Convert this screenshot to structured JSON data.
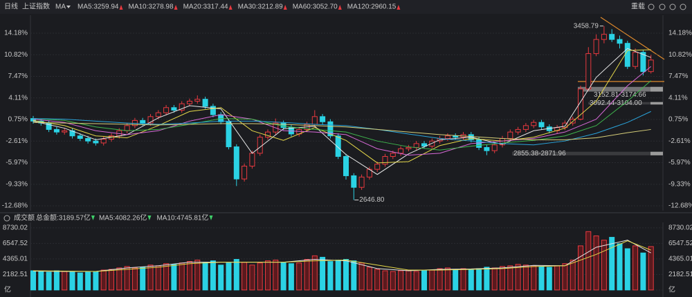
{
  "header": {
    "period": "日线",
    "symbol": "上证指数",
    "indicator": "MA",
    "reload": "重载"
  },
  "chart_data": [
    {
      "type": "candlestick",
      "up_color": "#e8393f",
      "down_color": "#2bd2e4",
      "ylim": [
        -13.43,
        16.65
      ],
      "yticks": [
        {
          "value": 14.18,
          "label": "14.18%"
        },
        {
          "value": 10.82,
          "label": "10.82%"
        },
        {
          "value": 7.47,
          "label": "7.47%"
        },
        {
          "value": 4.11,
          "label": "4.11%"
        },
        {
          "value": 0.75,
          "label": "0.75%"
        },
        {
          "value": -2.61,
          "label": "-2.61%"
        },
        {
          "value": -5.97,
          "label": "-5.97%"
        },
        {
          "value": -9.33,
          "label": "-9.33%"
        },
        {
          "value": -12.68,
          "label": "-12.68%"
        }
      ],
      "grid": true,
      "open": [
        0.9,
        0.5,
        0.2,
        -0.8,
        -1.2,
        -1.0,
        -1.8,
        -2.2,
        -2.6,
        -2.9,
        -2.3,
        -1.8,
        -1.0,
        -0.2,
        0.6,
        0.2,
        1.2,
        1.8,
        2.6,
        2.2,
        3.2,
        3.6,
        3.9,
        2.8,
        1.5,
        0.4,
        -3.5,
        -8.5,
        -6.5,
        -4.5,
        -2.0,
        -1.2,
        0.2,
        -0.5,
        -1.5,
        -0.8,
        0.0,
        1.2,
        0.4,
        -1.8,
        -5.0,
        -8.0,
        -9.8,
        -8.2,
        -7.0,
        -6.2,
        -5.0,
        -4.5,
        -3.8,
        -3.6,
        -3.0,
        -3.4,
        -2.6,
        -2.2,
        -1.8,
        -2.0,
        -1.6,
        -2.4,
        -3.6,
        -4.1,
        -3.2,
        -2.2,
        -1.2,
        -0.8,
        -0.2,
        0.3,
        -0.4,
        -1.0,
        -0.5,
        0.2,
        0.8,
        5.5,
        11.0,
        13.2,
        14.0,
        13.2,
        12.6,
        9.0,
        11.2,
        8.2
      ],
      "close": [
        0.5,
        0.2,
        -0.8,
        -1.2,
        -1.0,
        -1.8,
        -2.2,
        -2.6,
        -2.9,
        -2.3,
        -1.8,
        -1.0,
        -0.2,
        0.6,
        0.2,
        1.2,
        1.8,
        2.6,
        2.2,
        3.2,
        3.6,
        3.9,
        2.8,
        1.5,
        0.4,
        -3.5,
        -8.5,
        -6.5,
        -4.5,
        -2.0,
        -1.2,
        0.2,
        -0.5,
        -1.5,
        -0.8,
        0.0,
        1.2,
        0.4,
        -1.8,
        -5.0,
        -8.0,
        -9.8,
        -8.2,
        -7.0,
        -6.2,
        -5.0,
        -4.5,
        -3.8,
        -3.6,
        -3.0,
        -3.4,
        -2.6,
        -2.2,
        -1.8,
        -2.0,
        -1.6,
        -2.4,
        -3.6,
        -4.1,
        -3.2,
        -2.2,
        -1.2,
        -0.8,
        -0.2,
        0.3,
        -0.4,
        -1.0,
        -0.5,
        0.2,
        0.8,
        5.5,
        11.0,
        13.2,
        14.0,
        13.2,
        12.6,
        9.0,
        11.2,
        8.2,
        10.0
      ],
      "high": [
        1.3,
        0.9,
        0.6,
        -0.4,
        -0.6,
        -0.6,
        -1.4,
        -1.8,
        -2.2,
        -1.9,
        -1.4,
        -0.6,
        0.2,
        1.0,
        1.0,
        1.6,
        2.2,
        3.0,
        3.0,
        3.6,
        4.0,
        4.5,
        4.3,
        3.2,
        1.9,
        0.8,
        -3.1,
        -6.1,
        -4.1,
        -1.6,
        -0.8,
        0.9,
        0.6,
        -0.1,
        -0.4,
        0.4,
        2.2,
        1.6,
        0.8,
        -1.4,
        -4.6,
        -7.6,
        -7.8,
        -6.6,
        -5.8,
        -4.6,
        -4.1,
        -3.4,
        -3.2,
        -2.6,
        -2.6,
        -2.2,
        -1.8,
        -1.4,
        -1.4,
        -1.2,
        -1.2,
        -2.0,
        -3.2,
        -2.8,
        -1.8,
        -0.8,
        -0.4,
        0.2,
        0.7,
        0.7,
        0.0,
        -0.1,
        0.6,
        1.2,
        6.0,
        12.0,
        14.0,
        15.29,
        14.8,
        13.8,
        13.0,
        11.8,
        11.6,
        10.8
      ],
      "low": [
        0.1,
        -0.2,
        -1.2,
        -1.6,
        -1.6,
        -2.2,
        -2.6,
        -3.0,
        -3.3,
        -3.3,
        -2.7,
        -2.2,
        -1.4,
        -0.6,
        -0.2,
        -0.2,
        0.8,
        1.4,
        1.8,
        1.8,
        2.8,
        3.2,
        2.4,
        1.1,
        0.0,
        -3.9,
        -9.6,
        -8.9,
        -6.9,
        -4.9,
        -2.4,
        -1.6,
        -0.9,
        -1.9,
        -1.9,
        -1.2,
        -0.4,
        0.0,
        -2.2,
        -5.4,
        -8.6,
        -11.77,
        -10.2,
        -8.6,
        -7.4,
        -6.6,
        -5.4,
        -4.9,
        -4.2,
        -4.0,
        -3.8,
        -3.8,
        -3.0,
        -2.6,
        -2.4,
        -2.4,
        -2.8,
        -4.0,
        -4.8,
        -4.5,
        -3.6,
        -2.6,
        -1.6,
        -1.2,
        -0.6,
        -0.8,
        -1.4,
        -1.4,
        -0.9,
        -0.2,
        0.6,
        5.2,
        10.6,
        12.6,
        12.8,
        11.8,
        8.6,
        8.6,
        7.6,
        7.9
      ],
      "ma_x": [
        0,
        4,
        8,
        12,
        16,
        20,
        24,
        28,
        32,
        36,
        40,
        44,
        48,
        52,
        56,
        60,
        64,
        68,
        72,
        76,
        79
      ],
      "series": [
        {
          "name": "MA5:3259.94",
          "color": "#e8e8e8",
          "values": [
            0.5,
            -0.6,
            -2.4,
            -1.6,
            1.0,
            2.9,
            2.4,
            -4.5,
            -0.7,
            -0.3,
            -4.7,
            -7.8,
            -4.6,
            -2.4,
            -2.0,
            -3.1,
            -1.0,
            -0.3,
            7.3,
            11.8,
            10.4
          ]
        },
        {
          "name": "MA10:3278.98",
          "color": "#e6d94a",
          "values": [
            0.6,
            -0.2,
            -1.8,
            -2.1,
            -0.2,
            2.0,
            2.6,
            -1.0,
            -2.5,
            -0.5,
            -2.5,
            -6.0,
            -5.8,
            -3.3,
            -2.2,
            -2.6,
            -2.0,
            -0.6,
            3.6,
            11.5,
            11.6
          ]
        },
        {
          "name": "MA20:3317.44",
          "color": "#d86ad8",
          "values": [
            0.8,
            0.3,
            -1.0,
            -1.6,
            -1.0,
            0.5,
            1.5,
            0.8,
            -1.0,
            -1.2,
            -1.6,
            -3.8,
            -4.8,
            -4.5,
            -3.0,
            -2.6,
            -2.2,
            -1.2,
            0.8,
            6.0,
            9.0
          ]
        },
        {
          "name": "MA30:3212.89",
          "color": "#3fb84e",
          "values": [
            0.9,
            0.6,
            -0.4,
            -1.0,
            -0.8,
            0.0,
            0.9,
            0.8,
            -0.3,
            -0.8,
            -1.2,
            -2.6,
            -3.5,
            -4.0,
            -3.4,
            -2.9,
            -2.5,
            -1.8,
            -0.2,
            3.6,
            6.8
          ]
        },
        {
          "name": "MA60:3052.70",
          "color": "#2aa5dc",
          "values": [
            0.9,
            0.8,
            0.5,
            0.2,
            0.0,
            0.2,
            0.5,
            0.5,
            0.3,
            0.0,
            -0.2,
            -0.8,
            -1.5,
            -2.2,
            -2.6,
            -3.0,
            -3.2,
            -2.6,
            -1.4,
            0.3,
            2.0
          ]
        },
        {
          "name": "MA120:2960.15",
          "color": "#d8d07a",
          "values": [
            0.3,
            0.2,
            0.1,
            0.0,
            -0.1,
            0.0,
            0.1,
            0.1,
            0.0,
            -0.2,
            -0.4,
            -0.8,
            -1.2,
            -1.6,
            -1.9,
            -2.2,
            -2.4,
            -2.4,
            -2.1,
            -1.3,
            -0.8
          ]
        }
      ],
      "annotations": [
        {
          "label": "3458.79",
          "index": 73,
          "value": 15.29
        },
        {
          "label": "2646.80",
          "index": 41,
          "value": -11.77
        }
      ],
      "zones": [
        {
          "label": "3152.81-3174.66",
          "range": [
            5.094,
            5.822
          ]
        },
        {
          "label": "3092.44-3104.00",
          "range": [
            3.081,
            3.467
          ]
        },
        {
          "label": "2855.38-2871.96",
          "range": [
            -4.821,
            -4.268
          ]
        }
      ]
    },
    {
      "type": "bar",
      "title": "成交额",
      "total": "总金额:3189.57亿",
      "ylim": [
        -500,
        9200
      ],
      "yticks": [
        8730.02,
        6547.52,
        4365.01,
        2182.51,
        {
          "value": 0,
          "label": "亿"
        }
      ],
      "values": [
        2700,
        2600,
        2500,
        2700,
        2600,
        2500,
        2400,
        2500,
        2600,
        2800,
        2900,
        3100,
        3300,
        3100,
        3200,
        3500,
        3400,
        3700,
        3600,
        3800,
        4000,
        4200,
        3900,
        4100,
        3500,
        3800,
        4300,
        3900,
        3500,
        3800,
        4100,
        4200,
        3900,
        3700,
        3800,
        4300,
        4800,
        4600,
        4000,
        4200,
        4300,
        4100,
        3800,
        3200,
        2900,
        2700,
        2600,
        2700,
        2800,
        2600,
        2700,
        2800,
        3000,
        3100,
        2900,
        3000,
        2800,
        3000,
        3200,
        3100,
        3300,
        3400,
        3600,
        3500,
        3400,
        3300,
        3200,
        3400,
        3700,
        4200,
        6200,
        8200,
        7600,
        7000,
        7400,
        6500,
        5800,
        6200,
        5200,
        6100
      ],
      "ma_x": [
        0,
        4,
        8,
        12,
        16,
        20,
        24,
        28,
        32,
        36,
        40,
        44,
        48,
        52,
        56,
        60,
        64,
        68,
        72,
        76,
        79
      ],
      "series": [
        {
          "name": "MA5:4082.26亿",
          "color": "#e8e8e8",
          "values": [
            2650,
            2600,
            2600,
            3100,
            3400,
            3900,
            3900,
            3900,
            3900,
            4300,
            4100,
            3000,
            2700,
            2900,
            2950,
            3100,
            3450,
            3400,
            6000,
            7000,
            5200
          ]
        },
        {
          "name": "MA10:4745.81亿",
          "color": "#e6d94a",
          "values": [
            2700,
            2650,
            2600,
            2900,
            3200,
            3700,
            3900,
            3900,
            3900,
            4100,
            4200,
            3500,
            2800,
            2800,
            2900,
            3000,
            3300,
            3400,
            5000,
            6900,
            5600
          ]
        }
      ]
    }
  ]
}
